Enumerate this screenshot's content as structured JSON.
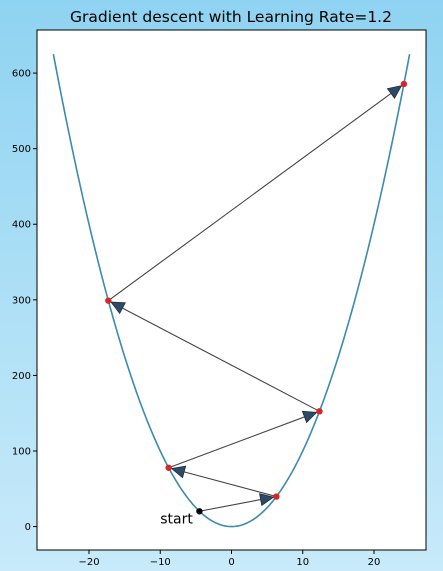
{
  "chart_data": {
    "type": "line",
    "title": "Gradient descent with Learning Rate=1.2",
    "xlabel": "",
    "ylabel": "",
    "xlim": [
      -27.3,
      27.3
    ],
    "ylim": [
      -31,
      657
    ],
    "xticks": [
      -20,
      -10,
      0,
      10,
      20
    ],
    "yticks": [
      0,
      100,
      200,
      300,
      400,
      500,
      600
    ],
    "curve": {
      "function": "y = x^2",
      "x_range": [
        -25,
        25
      ],
      "color": "#3b8bb0"
    },
    "points": [
      {
        "x": -4.5,
        "y": 20.25
      },
      {
        "x": 6.3,
        "y": 39.69
      },
      {
        "x": -8.82,
        "y": 77.79
      },
      {
        "x": 12.35,
        "y": 152.5
      },
      {
        "x": -17.29,
        "y": 298.9
      },
      {
        "x": 24.2,
        "y": 585.6
      }
    ],
    "start_point_color": "#000000",
    "step_point_color": "#d62728",
    "arrow_color": "#2e4a66",
    "annotation": {
      "text": "start",
      "x": -10,
      "y": 4
    },
    "grid": false
  }
}
